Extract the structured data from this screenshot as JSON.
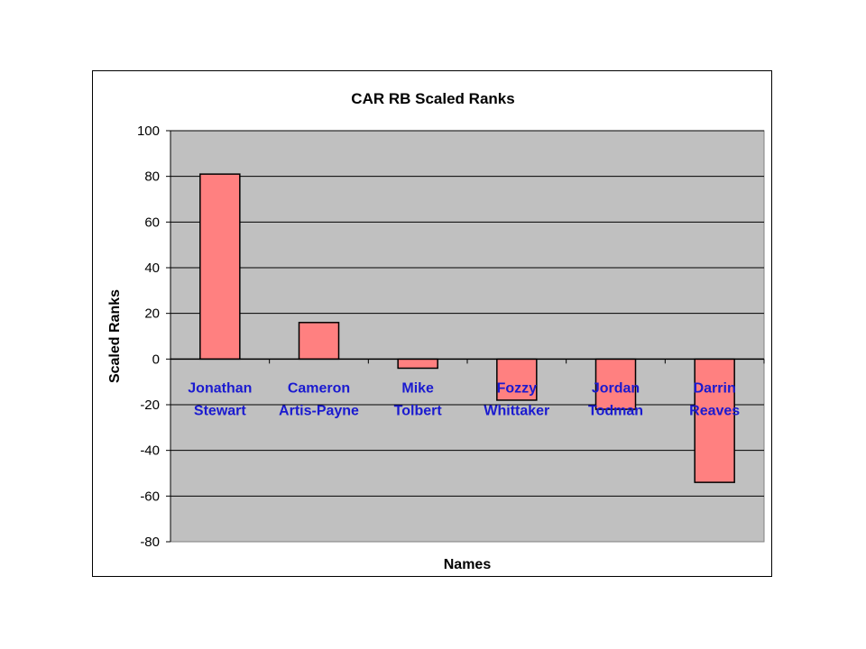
{
  "chart_data": {
    "type": "bar",
    "title": "CAR RB Scaled Ranks",
    "xlabel": "Names",
    "ylabel": "Scaled Ranks",
    "categories": [
      [
        "Jonathan",
        "Stewart"
      ],
      [
        "Cameron",
        "Artis-Payne"
      ],
      [
        "Mike",
        "Tolbert"
      ],
      [
        "Fozzy",
        "Whittaker"
      ],
      [
        "Jordan",
        "Todman"
      ],
      [
        "Darrin",
        "Reaves"
      ]
    ],
    "values": [
      81,
      16,
      -4,
      -18,
      -22,
      -54
    ],
    "ylim": [
      -80,
      100
    ],
    "yticks": [
      100,
      80,
      60,
      40,
      20,
      0,
      -20,
      -40,
      -60,
      -80
    ],
    "grid": true,
    "legend": "none",
    "colors": {
      "bar_fill": "#ff8080",
      "plot_background": "#c0c0c0",
      "category_label": "#1a1ad0",
      "gridline": "#000000"
    }
  }
}
